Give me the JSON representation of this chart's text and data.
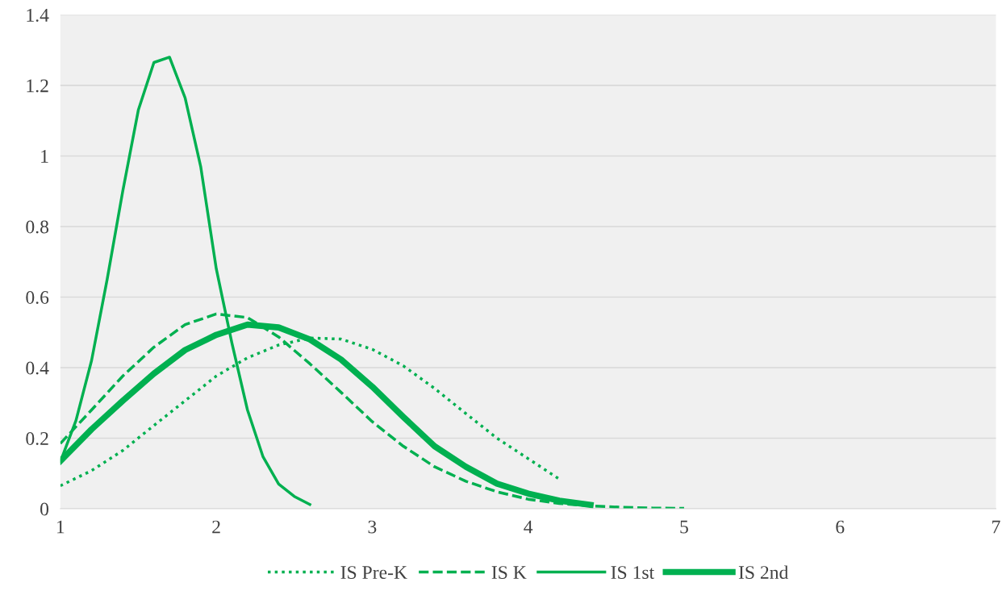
{
  "chart_data": {
    "type": "line",
    "xlim": [
      1,
      7
    ],
    "xticks": [
      1,
      2,
      3,
      4,
      5,
      6,
      7
    ],
    "ylim": [
      0,
      1.4
    ],
    "yticks": [
      0,
      0.2,
      0.4,
      0.6,
      0.8,
      1,
      1.2,
      1.4
    ],
    "grid": "y",
    "legend": "bottom",
    "marker": "none",
    "series": [
      {
        "name": "IS Pre-K",
        "color": "#00b050",
        "line_style": "dotted",
        "x": [
          1.0,
          1.2,
          1.4,
          1.6,
          1.8,
          2.0,
          2.2,
          2.4,
          2.6,
          2.8,
          3.0,
          3.2,
          3.4,
          3.6,
          3.8,
          4.0,
          4.2
        ],
        "values": [
          0.065,
          0.108,
          0.165,
          0.236,
          0.306,
          0.376,
          0.428,
          0.464,
          0.484,
          0.481,
          0.452,
          0.405,
          0.341,
          0.27,
          0.2,
          0.142,
          0.084
        ]
      },
      {
        "name": "IS K",
        "color": "#00b050",
        "line_style": "dashed",
        "x": [
          1.0,
          1.2,
          1.4,
          1.6,
          1.8,
          2.0,
          2.2,
          2.4,
          2.6,
          2.8,
          3.0,
          3.2,
          3.4,
          3.6,
          3.8,
          4.0,
          4.2,
          4.4,
          4.6,
          4.8,
          5.0
        ],
        "values": [
          0.185,
          0.28,
          0.376,
          0.458,
          0.522,
          0.552,
          0.542,
          0.487,
          0.411,
          0.33,
          0.247,
          0.177,
          0.119,
          0.078,
          0.048,
          0.027,
          0.015,
          0.008,
          0.004,
          0.002,
          0.001
        ]
      },
      {
        "name": "IS 1st",
        "color": "#00b050",
        "line_style": "solid",
        "x": [
          1.0,
          1.1,
          1.2,
          1.3,
          1.4,
          1.5,
          1.6,
          1.7,
          1.8,
          1.9,
          2.0,
          2.1,
          2.2,
          2.3,
          2.4,
          2.5,
          2.6
        ],
        "values": [
          0.133,
          0.25,
          0.42,
          0.65,
          0.9,
          1.13,
          1.265,
          1.28,
          1.165,
          0.97,
          0.68,
          0.47,
          0.28,
          0.147,
          0.07,
          0.035,
          0.012
        ]
      },
      {
        "name": "IS 2nd",
        "color": "#00b050",
        "line_style": "solid",
        "x": [
          1.0,
          1.2,
          1.4,
          1.6,
          1.8,
          2.0,
          2.2,
          2.4,
          2.6,
          2.8,
          3.0,
          3.2,
          3.4,
          3.6,
          3.8,
          4.0,
          4.2,
          4.4
        ],
        "values": [
          0.135,
          0.225,
          0.306,
          0.383,
          0.45,
          0.493,
          0.522,
          0.514,
          0.48,
          0.423,
          0.346,
          0.26,
          0.177,
          0.119,
          0.071,
          0.043,
          0.023,
          0.011
        ]
      }
    ]
  }
}
